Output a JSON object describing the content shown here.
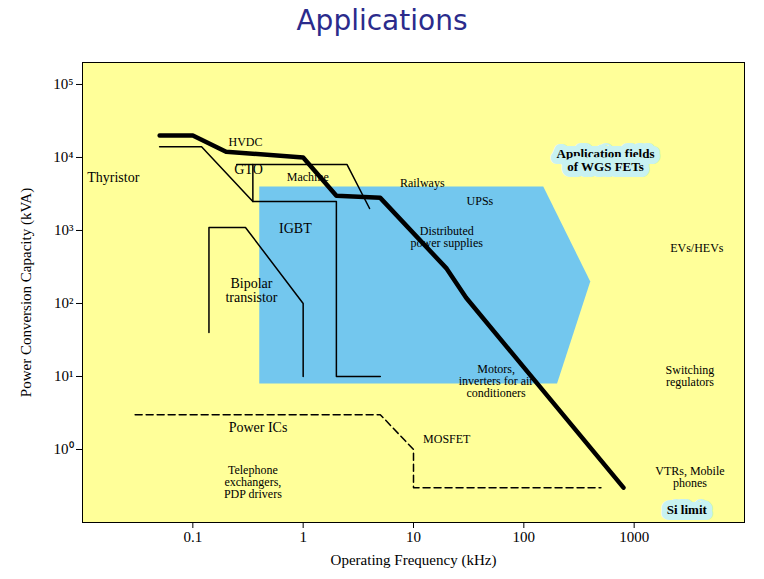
{
  "chart_data": {
    "type": "region",
    "title": "Applications",
    "xlabel": "Operating Frequency (kHz)",
    "ylabel": "Power Conversion Capacity (kVA)",
    "log": true,
    "grid": false,
    "xlim": [
      0.01,
      10000
    ],
    "ylim": [
      0.1,
      200000
    ],
    "xticks": [
      0.1,
      1,
      10,
      100,
      1000
    ],
    "yticks": [
      {
        "value": 1,
        "label": "10⁰"
      },
      {
        "value": 10,
        "label": "10¹"
      },
      {
        "value": 100,
        "label": "10²"
      },
      {
        "value": 1000,
        "label": "10³"
      },
      {
        "value": 10000,
        "label": "10⁴"
      },
      {
        "value": 100000,
        "label": "10⁵"
      }
    ],
    "series": [
      {
        "name": "Application fields of WGS FETs",
        "type": "area",
        "color": "#73c7ee",
        "x": [
          0.4,
          150,
          400,
          200,
          0.4
        ],
        "y": [
          4000,
          4000,
          200,
          8,
          8
        ],
        "label_at": [
          550,
          9000
        ]
      },
      {
        "name": "Thyristor",
        "type": "line",
        "color": "#000000",
        "line_style": "solid",
        "x": [
          0.05,
          0.12,
          0.35
        ],
        "y": [
          14000,
          14000,
          2500
        ],
        "label_at": [
          0.019,
          5400
        ]
      },
      {
        "name": "GTO",
        "type": "line",
        "color": "#000000",
        "line_style": "solid",
        "x": [
          0.25,
          2.5,
          4
        ],
        "y": [
          8000,
          8000,
          2000
        ],
        "label_at": [
          0.32,
          6900
        ]
      },
      {
        "name": "IGBT",
        "type": "line",
        "color": "#000000",
        "line_style": "solid",
        "x": [
          0.35,
          0.35,
          2,
          2,
          5
        ],
        "y": [
          8000,
          2500,
          2500,
          10,
          10
        ],
        "label_at": [
          0.85,
          1070
        ]
      },
      {
        "name": "Bipolar transistor",
        "type": "line",
        "color": "#000000",
        "line_style": "solid",
        "x": [
          0.14,
          0.14,
          0.3,
          1,
          1
        ],
        "y": [
          40,
          1100,
          1100,
          100,
          10
        ],
        "label_at": [
          0.34,
          150
        ]
      },
      {
        "name": "Power ICs",
        "type": "line",
        "color": "#000000",
        "line_style": "dashed",
        "x": [
          0.03,
          5,
          10,
          10,
          500
        ],
        "y": [
          3,
          3,
          1,
          0.3,
          0.3
        ],
        "label_at": [
          0.39,
          2
        ]
      },
      {
        "name": "Si limit",
        "type": "line",
        "color": "#000000",
        "line_style": "thick",
        "x": [
          0.05,
          0.1,
          0.2,
          1,
          2,
          5,
          20,
          30,
          800
        ],
        "y": [
          20000,
          20000,
          12000,
          10000,
          3000,
          2800,
          300,
          120,
          0.3
        ],
        "label_at": [
          3000,
          0.15
        ]
      }
    ],
    "annotations": [
      {
        "text": "HVDC",
        "x": 0.3,
        "y": 16000
      },
      {
        "text": "Machine",
        "x": 1.1,
        "y": 5400
      },
      {
        "text": "Railways",
        "x": 12,
        "y": 4500
      },
      {
        "text": "UPSs",
        "x": 40,
        "y": 2500
      },
      {
        "text": "Distributed power supplies",
        "x": 20,
        "y": 800
      },
      {
        "text": "EVs/HEVs",
        "x": 3700,
        "y": 580
      },
      {
        "text": "Motors, inverters for air conditioners",
        "x": 56,
        "y": 8.7
      },
      {
        "text": "Switching regulators",
        "x": 3200,
        "y": 10
      },
      {
        "text": "MOSFET",
        "x": 20,
        "y": 1.4
      },
      {
        "text": "VTRs, Mobile phones",
        "x": 3200,
        "y": 0.42
      },
      {
        "text": "Telephone exchangers, PDP drivers",
        "x": 0.35,
        "y": 0.36
      }
    ]
  }
}
